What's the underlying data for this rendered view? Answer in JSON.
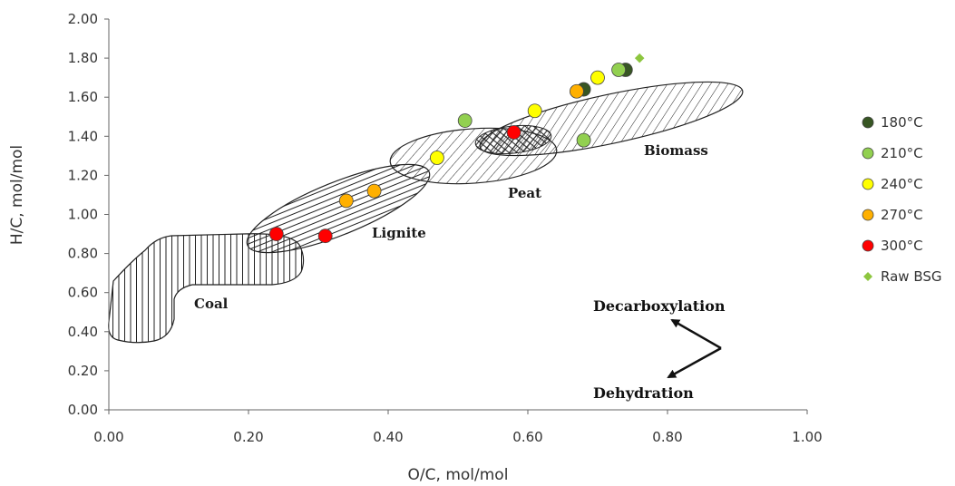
{
  "chart_data": {
    "type": "scatter",
    "title": "",
    "xlabel": "O/C, mol/mol",
    "ylabel": "H/C, mol/mol",
    "xlim": [
      0,
      1
    ],
    "ylim": [
      0,
      2
    ],
    "x_ticks": [
      "0.00",
      "0.20",
      "0.40",
      "0.60",
      "0.80",
      "1.00"
    ],
    "y_ticks": [
      "0.00",
      "0.20",
      "0.40",
      "0.60",
      "0.80",
      "1.00",
      "1.20",
      "1.40",
      "1.60",
      "1.80",
      "2.00"
    ],
    "grid": false,
    "legend_position": "right",
    "series": [
      {
        "name": "180°C",
        "color": "#375623",
        "marker": "circle",
        "points": [
          [
            0.68,
            1.64
          ],
          [
            0.74,
            1.74
          ]
        ]
      },
      {
        "name": "210°C",
        "color": "#92d050",
        "marker": "circle",
        "points": [
          [
            0.51,
            1.48
          ],
          [
            0.68,
            1.38
          ],
          [
            0.73,
            1.74
          ]
        ]
      },
      {
        "name": "240°C",
        "color": "#ffff00",
        "marker": "circle",
        "points": [
          [
            0.47,
            1.29
          ],
          [
            0.61,
            1.53
          ],
          [
            0.7,
            1.7
          ]
        ]
      },
      {
        "name": "270°C",
        "color": "#ffb000",
        "marker": "circle",
        "points": [
          [
            0.34,
            1.07
          ],
          [
            0.38,
            1.12
          ],
          [
            0.67,
            1.63
          ]
        ]
      },
      {
        "name": "300°C",
        "color": "#ff0000",
        "marker": "circle",
        "points": [
          [
            0.24,
            0.9
          ],
          [
            0.31,
            0.89
          ],
          [
            0.58,
            1.42
          ]
        ]
      },
      {
        "name": "Raw BSG",
        "color": "#8dc63f",
        "marker": "diamond",
        "points": [
          [
            0.76,
            1.8
          ]
        ]
      }
    ],
    "regions": [
      {
        "name": "Coal",
        "hatch": "vertical"
      },
      {
        "name": "Lignite",
        "hatch": "horizontal"
      },
      {
        "name": "Peat",
        "hatch": "diagonal"
      },
      {
        "name": "Biomass",
        "hatch": "diagonal"
      }
    ],
    "annotations": [
      "Decarboxylation",
      "Dehydration"
    ]
  }
}
